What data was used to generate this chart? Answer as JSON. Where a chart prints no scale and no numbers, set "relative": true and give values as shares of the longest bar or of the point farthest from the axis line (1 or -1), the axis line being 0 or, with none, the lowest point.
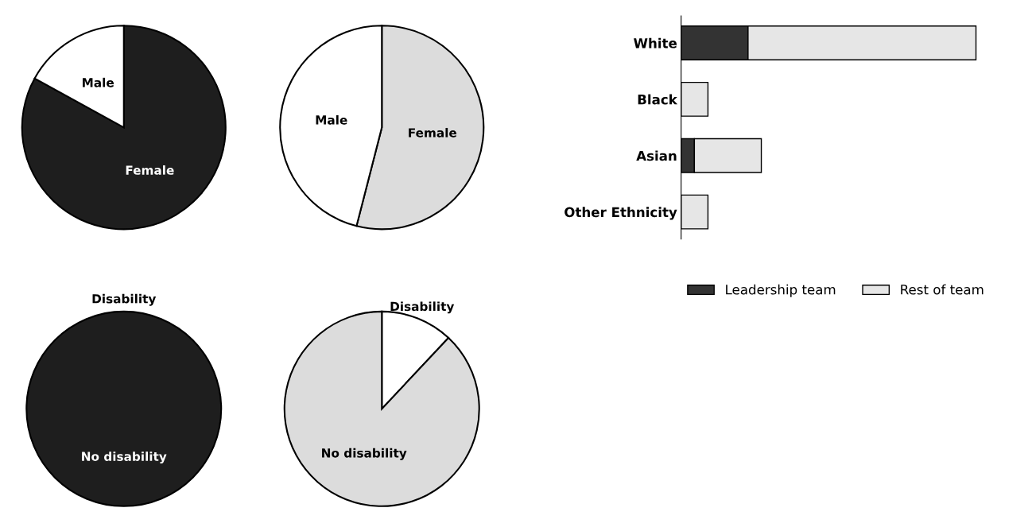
{
  "chart_data": [
    {
      "type": "pie",
      "categories": [
        "Female",
        "Male"
      ],
      "values": [
        83,
        17
      ],
      "colors": [
        "#1e1e1e",
        "#ffffff"
      ]
    },
    {
      "type": "pie",
      "categories": [
        "Female",
        "Male"
      ],
      "values": [
        54,
        46
      ],
      "colors": [
        "#dcdcdc",
        "#ffffff"
      ]
    },
    {
      "type": "pie",
      "categories": [
        "Disability",
        "No disability"
      ],
      "values": [
        0,
        100
      ],
      "colors": [
        "#ffffff",
        "#1e1e1e"
      ]
    },
    {
      "type": "pie",
      "categories": [
        "Disability",
        "No disability"
      ],
      "values": [
        12,
        88
      ],
      "colors": [
        "#ffffff",
        "#dcdcdc"
      ]
    },
    {
      "type": "bar",
      "orientation": "horizontal",
      "stacked": true,
      "relative": true,
      "categories": [
        "White",
        "Black",
        "Asian",
        "Other Ethnicity"
      ],
      "series": [
        {
          "name": "Leadership team",
          "color": "#333333",
          "values": [
            0.227,
            0,
            0.045,
            0
          ]
        },
        {
          "name": "Rest of team",
          "color": "#e6e6e6",
          "values": [
            0.773,
            0.091,
            0.227,
            0.091
          ]
        }
      ],
      "legend": "bottom"
    }
  ]
}
